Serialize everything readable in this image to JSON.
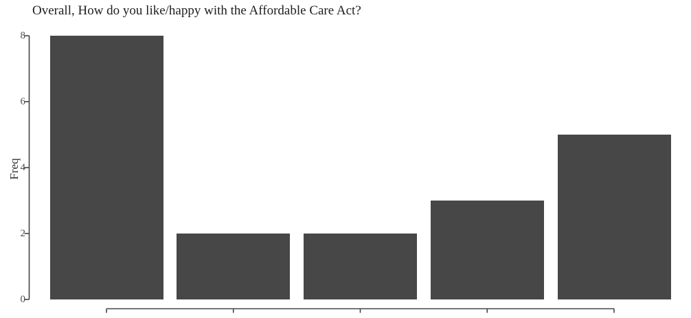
{
  "chart_data": {
    "type": "bar",
    "title": "Overall, How do you like/happy with the Affordable Care Act?",
    "xlabel": "",
    "ylabel": "Freq",
    "categories": [
      "",
      "",
      "",
      "",
      ""
    ],
    "values": [
      8,
      2,
      2,
      3,
      5
    ],
    "y_ticks": [
      0,
      2,
      4,
      6,
      8
    ],
    "ylim": [
      0,
      8
    ],
    "x_tick_labels_visible": false,
    "grid": false,
    "legend": false,
    "colors": {
      "bar_fill": "#474747",
      "axis": "#434343",
      "tick_label": "#4d4d4d",
      "title": "#1e1e1e"
    }
  }
}
